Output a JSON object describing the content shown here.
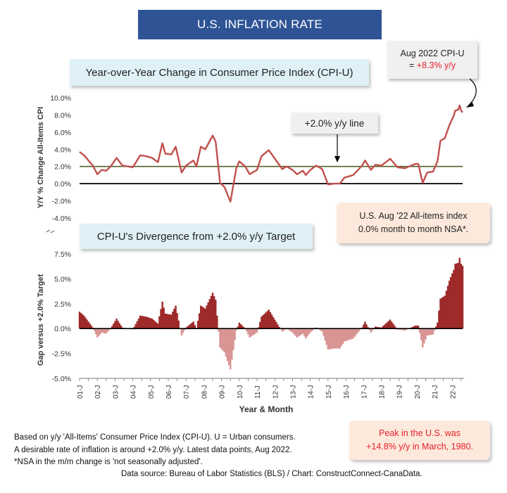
{
  "title": "U.S. INFLATION RATE",
  "top_chart": {
    "subtitle": "Year-over-Year Change in Consumer Price Index (CPI-U)",
    "ylabel": "Y/Y % Change All-Items CPI",
    "callout_latest_line1": "Aug 2022 CPI-U",
    "callout_latest_eq": "= ",
    "callout_latest_value": "+8.3% y/y",
    "line_label": "+2.0% y/y line",
    "mm_note_line1": "U.S. Aug '22 All-items index",
    "mm_note_line2": "0.0% month to month NSA*."
  },
  "bottom_chart": {
    "subtitle": "CPI-U's Divergence from +2.0% y/y Target",
    "ylabel": "Gap versus +2.0% Target",
    "xlabel": "Year & Month"
  },
  "peak_note_line1": "Peak in the U.S. was",
  "peak_note_line2": "+14.8% y/y in March, 1980.",
  "footnotes": [
    "Based on y/y 'All-Items' Consumer Price Index (CPI-U). U = Urban consumers.",
    "A desirable rate of inflation is around +2.0% y/y. Latest data points, Aug 2022.",
    "*NSA in the m/m change is 'not seasonally adjusted'."
  ],
  "source": "Data source: Bureau of Labor Statistics (BLS) / Chart: ConstructConnect-CanaData.",
  "colors": {
    "line": "#c0504d",
    "target": "#4f6228",
    "positive_fill": "#9e2a2a",
    "negative_fill": "#d99594"
  },
  "chart_data": [
    {
      "type": "line",
      "title": "Year-over-Year Change in Consumer Price Index (CPI-U)",
      "ylabel": "Y/Y % Change All-Items CPI",
      "ylim": [
        -4.0,
        10.0
      ],
      "yticks": [
        "10.0%",
        "8.0%",
        "6.0%",
        "4.0%",
        "2.0%",
        "0.0%",
        "-2.0%",
        "-4.0%"
      ],
      "reference_line": {
        "value": 2.0,
        "label": "+2.0% y/y line"
      },
      "x_start": "2001-01",
      "x_end": "2022-08",
      "series_anchors": [
        [
          "2001-01",
          3.7
        ],
        [
          "2001-04",
          3.3
        ],
        [
          "2001-07",
          2.7
        ],
        [
          "2001-10",
          2.1
        ],
        [
          "2002-01",
          1.1
        ],
        [
          "2002-04",
          1.6
        ],
        [
          "2002-07",
          1.5
        ],
        [
          "2002-10",
          2.0
        ],
        [
          "2003-02",
          3.0
        ],
        [
          "2003-06",
          2.1
        ],
        [
          "2003-10",
          2.0
        ],
        [
          "2004-01",
          1.9
        ],
        [
          "2004-06",
          3.3
        ],
        [
          "2004-10",
          3.2
        ],
        [
          "2005-02",
          3.0
        ],
        [
          "2005-06",
          2.5
        ],
        [
          "2005-09",
          4.7
        ],
        [
          "2005-11",
          3.5
        ],
        [
          "2006-03",
          3.4
        ],
        [
          "2006-06",
          4.3
        ],
        [
          "2006-10",
          1.3
        ],
        [
          "2007-01",
          2.1
        ],
        [
          "2007-06",
          2.7
        ],
        [
          "2007-08",
          2.0
        ],
        [
          "2007-11",
          4.3
        ],
        [
          "2008-02",
          4.0
        ],
        [
          "2008-07",
          5.6
        ],
        [
          "2008-09",
          4.9
        ],
        [
          "2008-12",
          0.1
        ],
        [
          "2009-03",
          -0.4
        ],
        [
          "2009-07",
          -2.1
        ],
        [
          "2009-11",
          1.8
        ],
        [
          "2010-01",
          2.6
        ],
        [
          "2010-05",
          2.0
        ],
        [
          "2010-08",
          1.1
        ],
        [
          "2011-01",
          1.6
        ],
        [
          "2011-04",
          3.2
        ],
        [
          "2011-09",
          3.9
        ],
        [
          "2012-01",
          2.9
        ],
        [
          "2012-06",
          1.7
        ],
        [
          "2012-09",
          2.0
        ],
        [
          "2013-01",
          1.6
        ],
        [
          "2013-04",
          1.1
        ],
        [
          "2013-08",
          1.5
        ],
        [
          "2013-10",
          1.0
        ],
        [
          "2014-01",
          1.6
        ],
        [
          "2014-05",
          2.1
        ],
        [
          "2014-09",
          1.7
        ],
        [
          "2015-01",
          -0.1
        ],
        [
          "2015-05",
          0.0
        ],
        [
          "2015-09",
          0.0
        ],
        [
          "2015-12",
          0.7
        ],
        [
          "2016-06",
          1.0
        ],
        [
          "2016-12",
          2.1
        ],
        [
          "2017-02",
          2.7
        ],
        [
          "2017-06",
          1.6
        ],
        [
          "2017-09",
          2.2
        ],
        [
          "2018-01",
          2.1
        ],
        [
          "2018-07",
          2.9
        ],
        [
          "2018-12",
          1.9
        ],
        [
          "2019-05",
          1.8
        ],
        [
          "2019-12",
          2.3
        ],
        [
          "2020-02",
          2.3
        ],
        [
          "2020-05",
          0.1
        ],
        [
          "2020-08",
          1.3
        ],
        [
          "2020-12",
          1.4
        ],
        [
          "2021-03",
          2.6
        ],
        [
          "2021-05",
          5.0
        ],
        [
          "2021-08",
          5.3
        ],
        [
          "2021-11",
          6.8
        ],
        [
          "2022-02",
          7.9
        ],
        [
          "2022-03",
          8.5
        ],
        [
          "2022-05",
          8.6
        ],
        [
          "2022-06",
          9.1
        ],
        [
          "2022-07",
          8.5
        ],
        [
          "2022-08",
          8.3
        ]
      ]
    },
    {
      "type": "area",
      "title": "CPI-U's Divergence from +2.0% y/y Target",
      "ylabel": "Gap versus +2.0% Target",
      "xlabel": "Year & Month",
      "ylim": [
        -5.0,
        7.5
      ],
      "yticks": [
        "7.5%",
        "5.0%",
        "2.5%",
        "0.0%",
        "-2.5%",
        "-5.0%"
      ],
      "derived_from": "series minus 2.0",
      "xticks": [
        "01-J",
        "02-J",
        "03-J",
        "04-J",
        "05-J",
        "06-J",
        "07-J",
        "08-J",
        "09-J",
        "10-J",
        "11-J",
        "12-J",
        "13-J",
        "14-J",
        "15-J",
        "16-J",
        "17-J",
        "18-J",
        "19-J",
        "20-J",
        "21-J",
        "22-J"
      ]
    }
  ]
}
